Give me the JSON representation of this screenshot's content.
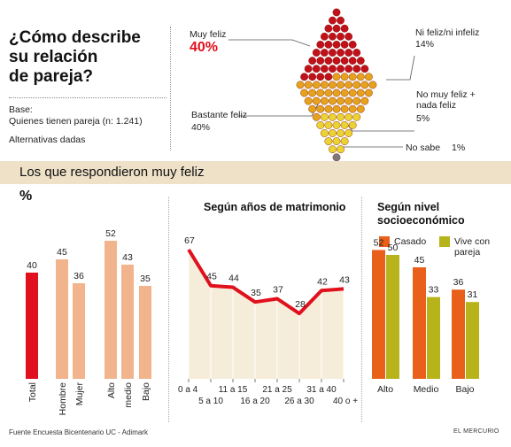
{
  "header": {
    "title_lines": [
      "¿Cómo describe",
      "su relación",
      "de pareja?"
    ],
    "base_lines": [
      "Base:",
      "Quienes tienen pareja (n: 1.241)"
    ],
    "alternatives": "Alternativas dadas"
  },
  "colors": {
    "red": "#e0101c",
    "light_orange": "#f2b48c",
    "orange": "#e8601a",
    "olive": "#b6b41a",
    "dark_red": "#c0101a",
    "amber": "#e6a21a",
    "yellow": "#ecd330",
    "gray": "#7a7a7a",
    "band": "#eee1c8"
  },
  "top_chart": {
    "categories": [
      {
        "label": "Muy feliz",
        "value_text": "40%",
        "value": 40
      },
      {
        "label": "Bastante feliz",
        "value_text": "40%",
        "value": 40
      },
      {
        "label": "Ni feliz/ni infeliz",
        "value_text": "14%",
        "value": 14
      },
      {
        "label_lines": [
          "No muy feliz +",
          "nada feliz"
        ],
        "value_text": "5%",
        "value": 5
      },
      {
        "label": "No sabe",
        "value_text": "1%",
        "value": 1
      }
    ]
  },
  "section_title": "Los que respondieron muy feliz",
  "percent_symbol": "%",
  "chart_data": [
    {
      "type": "bar",
      "categories": [
        "Total",
        "Hombre",
        "Mujer",
        "Alto",
        "medio",
        "Bajo"
      ],
      "values": [
        40,
        45,
        36,
        52,
        43,
        35
      ],
      "ylabel": "%"
    },
    {
      "type": "line",
      "title": "Según años de matrimonio",
      "x": [
        "0 a 4",
        "5 a 10",
        "11 a 15",
        "16 a 20",
        "21 a 25",
        "26 a 30",
        "31 a 40",
        "40 o +"
      ],
      "values": [
        67,
        45,
        44,
        35,
        37,
        28,
        42,
        43
      ]
    },
    {
      "type": "bar",
      "title": "Según nivel socioeconómico",
      "title_lines": [
        "Según nivel",
        "socioeconómico"
      ],
      "categories": [
        "Alto",
        "Medio",
        "Bajo"
      ],
      "series": [
        {
          "name": "Casado",
          "values": [
            52,
            45,
            36
          ]
        },
        {
          "name": "Vive con pareja",
          "name_lines": [
            "Vive con",
            "pareja"
          ],
          "values": [
            50,
            33,
            31
          ]
        }
      ]
    }
  ],
  "footer": {
    "source": "Fuente  Encuesta Bicentenario UC - Adimark",
    "brand": "EL MERCURIO"
  }
}
